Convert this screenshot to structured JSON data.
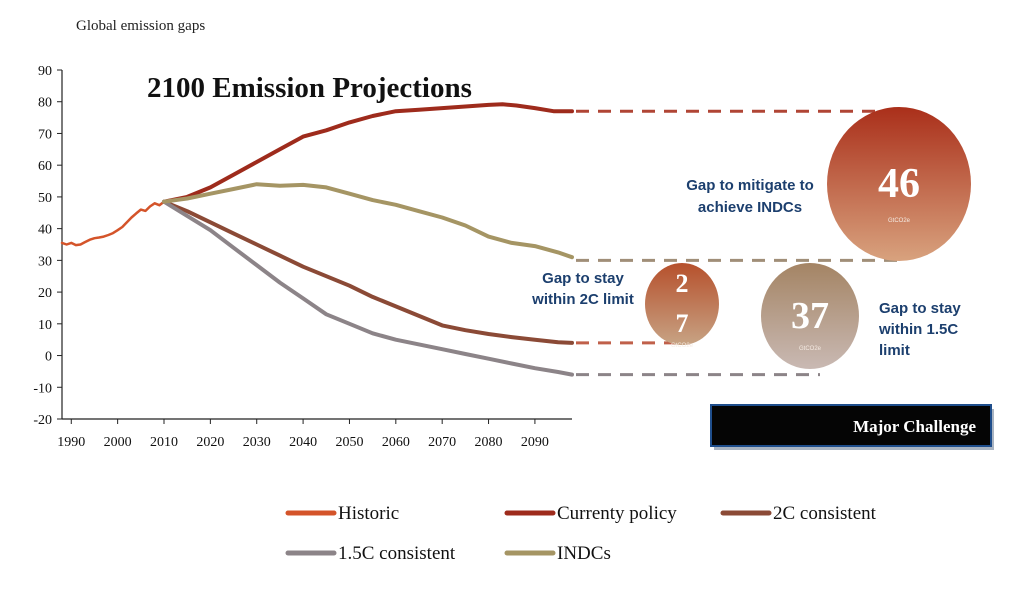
{
  "header": {
    "subtitle": "Global emission gaps"
  },
  "chart_data": {
    "type": "line",
    "title": "2100 Emission Projections",
    "xlabel": "",
    "ylabel": "",
    "xlim": [
      1988,
      2098
    ],
    "ylim": [
      -20,
      90
    ],
    "x_ticks": [
      "1990",
      "2000",
      "2010",
      "2020",
      "2030",
      "2040",
      "2050",
      "2060",
      "2070",
      "2080",
      "2090"
    ],
    "x_tick_values": [
      1990,
      2000,
      2010,
      2020,
      2030,
      2040,
      2050,
      2060,
      2070,
      2080,
      2090
    ],
    "y_ticks": [
      "90",
      "80",
      "70",
      "60",
      "50",
      "40",
      "30",
      "20",
      "10",
      "0",
      "-10",
      "-20"
    ],
    "y_tick_values": [
      90,
      80,
      70,
      60,
      50,
      40,
      30,
      20,
      10,
      0,
      -10,
      -20
    ],
    "grid": false,
    "legend": "bottom",
    "series": [
      {
        "name": "Historic",
        "color": "#d4542a",
        "points": [
          [
            1988,
            35.5
          ],
          [
            1989,
            35.0
          ],
          [
            1990,
            35.5
          ],
          [
            1991,
            34.8
          ],
          [
            1992,
            35.0
          ],
          [
            1993,
            35.8
          ],
          [
            1994,
            36.5
          ],
          [
            1995,
            37.0
          ],
          [
            1996,
            37.2
          ],
          [
            1997,
            37.5
          ],
          [
            1998,
            38.0
          ],
          [
            1999,
            38.6
          ],
          [
            2000,
            39.5
          ],
          [
            2001,
            40.5
          ],
          [
            2002,
            42.0
          ],
          [
            2003,
            43.5
          ],
          [
            2004,
            44.8
          ],
          [
            2005,
            46.0
          ],
          [
            2006,
            45.6
          ],
          [
            2007,
            47.0
          ],
          [
            2008,
            48.0
          ],
          [
            2009,
            47.4
          ],
          [
            2010,
            48.5
          ]
        ]
      },
      {
        "name": "Currenty policy",
        "color": "#9e2b1c",
        "points": [
          [
            2010,
            48.5
          ],
          [
            2015,
            50.0
          ],
          [
            2020,
            53.0
          ],
          [
            2025,
            57.0
          ],
          [
            2030,
            61.0
          ],
          [
            2035,
            65.0
          ],
          [
            2040,
            69.0
          ],
          [
            2045,
            71.0
          ],
          [
            2050,
            73.5
          ],
          [
            2055,
            75.5
          ],
          [
            2060,
            77.0
          ],
          [
            2065,
            77.5
          ],
          [
            2070,
            78.0
          ],
          [
            2075,
            78.5
          ],
          [
            2080,
            79.0
          ],
          [
            2083,
            79.2
          ],
          [
            2086,
            78.8
          ],
          [
            2090,
            78.0
          ],
          [
            2094,
            77.0
          ],
          [
            2098,
            77.0
          ]
        ]
      },
      {
        "name": "2C consistent",
        "color": "#8b4a36",
        "points": [
          [
            2010,
            48.5
          ],
          [
            2015,
            45.5
          ],
          [
            2020,
            42.0
          ],
          [
            2025,
            38.5
          ],
          [
            2030,
            35.0
          ],
          [
            2035,
            31.5
          ],
          [
            2040,
            28.0
          ],
          [
            2045,
            25.0
          ],
          [
            2050,
            22.0
          ],
          [
            2055,
            18.5
          ],
          [
            2060,
            15.5
          ],
          [
            2065,
            12.5
          ],
          [
            2070,
            9.5
          ],
          [
            2075,
            8.0
          ],
          [
            2080,
            6.8
          ],
          [
            2085,
            5.8
          ],
          [
            2090,
            5.0
          ],
          [
            2095,
            4.2
          ],
          [
            2098,
            4.0
          ]
        ]
      },
      {
        "name": "1.5C consistent",
        "color": "#8c8488",
        "points": [
          [
            2010,
            48.5
          ],
          [
            2015,
            44.0
          ],
          [
            2020,
            39.5
          ],
          [
            2025,
            34.0
          ],
          [
            2030,
            28.5
          ],
          [
            2035,
            23.0
          ],
          [
            2040,
            18.0
          ],
          [
            2045,
            13.0
          ],
          [
            2050,
            10.0
          ],
          [
            2055,
            7.0
          ],
          [
            2060,
            5.0
          ],
          [
            2065,
            3.5
          ],
          [
            2070,
            2.0
          ],
          [
            2075,
            0.5
          ],
          [
            2080,
            -1.0
          ],
          [
            2085,
            -2.5
          ],
          [
            2090,
            -4.0
          ],
          [
            2095,
            -5.2
          ],
          [
            2098,
            -6.0
          ]
        ]
      },
      {
        "name": "INDCs",
        "color": "#a59564",
        "points": [
          [
            2010,
            48.5
          ],
          [
            2015,
            49.5
          ],
          [
            2020,
            51.0
          ],
          [
            2025,
            52.5
          ],
          [
            2030,
            54.0
          ],
          [
            2035,
            53.5
          ],
          [
            2040,
            53.8
          ],
          [
            2045,
            53.0
          ],
          [
            2050,
            51.0
          ],
          [
            2055,
            49.0
          ],
          [
            2060,
            47.5
          ],
          [
            2065,
            45.5
          ],
          [
            2070,
            43.5
          ],
          [
            2075,
            41.0
          ],
          [
            2080,
            37.5
          ],
          [
            2085,
            35.5
          ],
          [
            2090,
            34.5
          ],
          [
            2095,
            32.5
          ],
          [
            2098,
            31.0
          ]
        ]
      }
    ],
    "legend_entries": [
      {
        "label": "Historic",
        "color": "#d4542a"
      },
      {
        "label": "Currenty policy",
        "color": "#9e2b1c"
      },
      {
        "label": "2C consistent",
        "color": "#8b4a36"
      },
      {
        "label": "1.5C consistent",
        "color": "#8c8488"
      },
      {
        "label": "INDCs",
        "color": "#a59564"
      }
    ],
    "gap_lines": [
      {
        "y": 77,
        "color": "#b04535"
      },
      {
        "y": 30,
        "color": "#a08e78"
      },
      {
        "y": 4,
        "color": "#c0604a"
      },
      {
        "y": -6,
        "color": "#8c8488"
      }
    ],
    "annotations": [
      {
        "label": "Gap to mitigate to achieve INDCs",
        "lines": [
          "Gap to mitigate to",
          "achieve INDCs"
        ],
        "value": "46",
        "unit": "GtCO2e",
        "color_top": "#aa2f1a",
        "color_bottom": "#d8a27e"
      },
      {
        "label": "Gap to stay within 2C limit",
        "lines": [
          "Gap to stay",
          "within 2C limit"
        ],
        "value": "27",
        "value_lines": [
          "2",
          "7"
        ],
        "unit": "GtCO2e",
        "color_top": "#b6502c",
        "color_bottom": "#c7a384"
      },
      {
        "label": "Gap to stay within 1.5C limit",
        "lines": [
          "Gap to stay",
          "within 1.5C",
          "limit"
        ],
        "value": "37",
        "unit": "GtCO2e",
        "color_top": "#a48464",
        "color_bottom": "#c9b9b3"
      }
    ],
    "banner": "Major Challenge",
    "label_color": "#1c3f6e"
  }
}
